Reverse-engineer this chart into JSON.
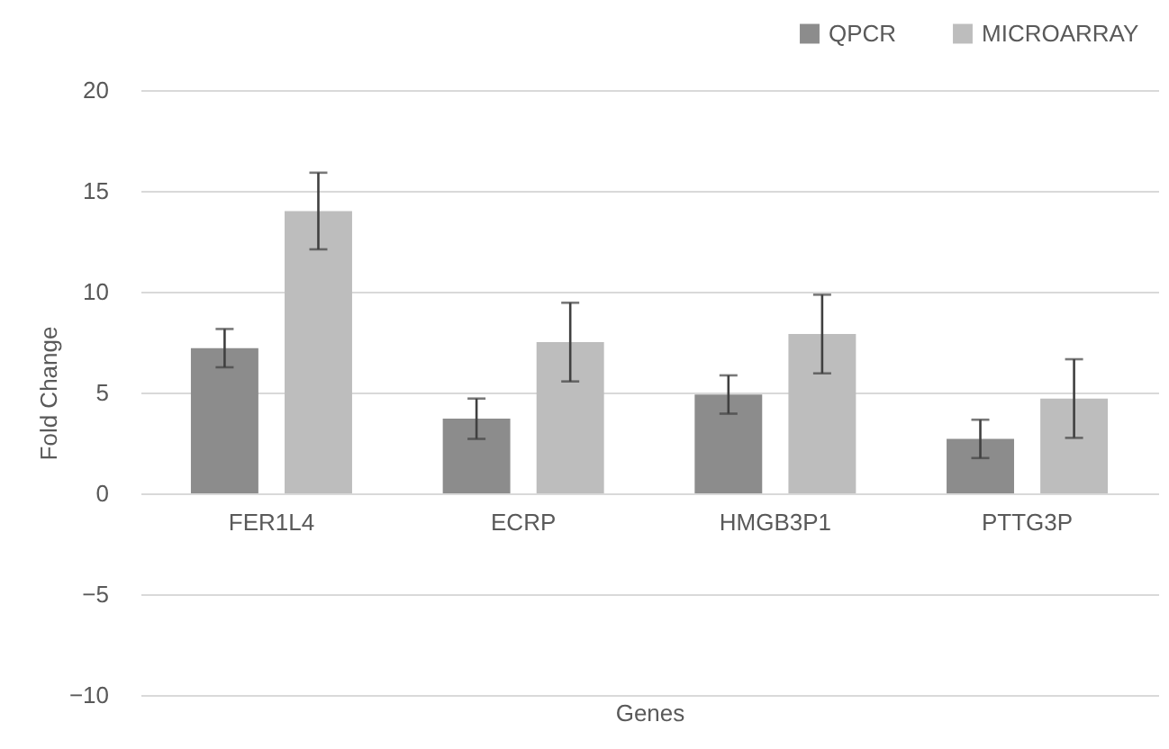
{
  "chart_data": {
    "type": "bar",
    "xlabel": "Genes",
    "ylabel": "Fold Change",
    "categories": [
      "FER1L4",
      "ECRP",
      "HMGB3P1",
      "PTTG3P"
    ],
    "series": [
      {
        "name": "QPCR",
        "color": "#8c8c8c",
        "values": [
          7.2,
          3.7,
          4.9,
          2.7
        ],
        "errors": [
          0.95,
          1,
          0.95,
          0.95
        ]
      },
      {
        "name": "MICROARRAY",
        "color": "#bdbdbd",
        "values": [
          14,
          7.5,
          7.9,
          4.7
        ],
        "errors": [
          1.9,
          1.95,
          1.95,
          1.95
        ]
      }
    ],
    "ylim": [
      -10,
      20
    ],
    "yticks": [
      -10,
      -5,
      0,
      5,
      10,
      15,
      20
    ],
    "grid": "y",
    "legend": "top right"
  }
}
